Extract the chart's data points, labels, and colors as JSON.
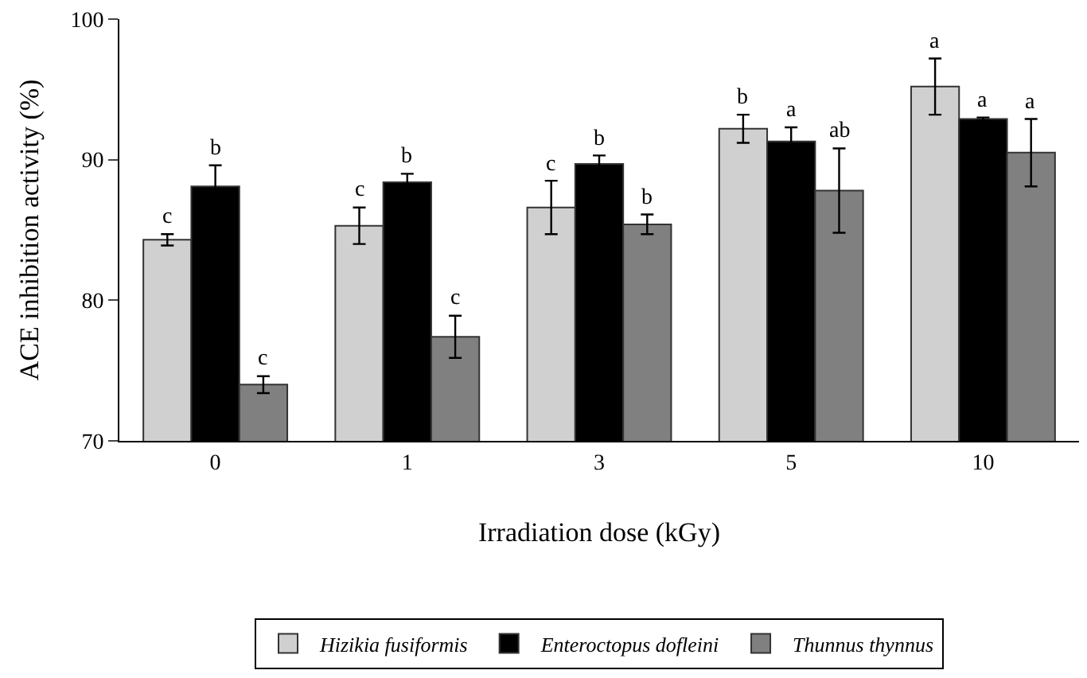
{
  "chart_data": {
    "type": "bar",
    "xlabel": "Irradiation dose (kGy)",
    "ylabel": "ACE inhibition activity (%)",
    "categories": [
      "0",
      "1",
      "3",
      "5",
      "10"
    ],
    "series": [
      {
        "name": "Hizikia fusiformis",
        "color": "#d0d0d0",
        "values": [
          84.3,
          85.3,
          86.6,
          92.2,
          95.2
        ],
        "errors": [
          0.4,
          1.3,
          1.9,
          1.0,
          2.0
        ],
        "value_labels": [
          "c",
          "c",
          "c",
          "b",
          "a"
        ]
      },
      {
        "name": "Enteroctopus dofleini",
        "color": "#000000",
        "values": [
          88.1,
          88.4,
          89.7,
          91.3,
          92.9
        ],
        "errors": [
          1.5,
          0.6,
          0.6,
          1.0,
          0.1
        ],
        "value_labels": [
          "b",
          "b",
          "b",
          "a",
          "a"
        ]
      },
      {
        "name": "Thunnus thynnus",
        "color": "#808080",
        "values": [
          74.0,
          77.4,
          85.4,
          87.8,
          90.5
        ],
        "errors": [
          0.6,
          1.5,
          0.7,
          3.0,
          2.4
        ],
        "value_labels": [
          "c",
          "c",
          "b",
          "ab",
          "a"
        ]
      }
    ],
    "ylim": [
      70,
      100
    ],
    "yticks": [
      70,
      80,
      90,
      100
    ],
    "legend": "bottom"
  }
}
